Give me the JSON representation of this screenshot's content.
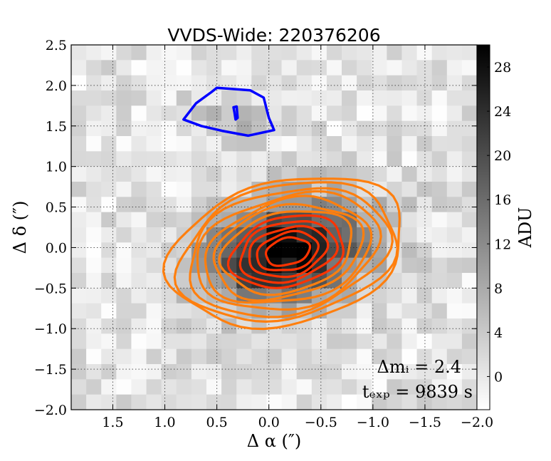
{
  "chart_data": {
    "type": "heatmap",
    "title": "VVDS-Wide: 220376206",
    "xlabel": "Δ α  (″)",
    "ylabel": "Δ δ  (″)",
    "xlim": [
      1.9,
      -2.0
    ],
    "ylim": [
      -2.0,
      2.5
    ],
    "xticks": [
      1.5,
      1.0,
      0.5,
      0.0,
      -0.5,
      -1.0,
      -1.5,
      -2.0
    ],
    "xtick_labels": [
      "1.5",
      "1.0",
      "0.5",
      "0.0",
      "−0.5",
      "−1.0",
      "−1.5",
      "−2.0"
    ],
    "yticks": [
      2.5,
      2.0,
      1.5,
      1.0,
      0.5,
      0.0,
      -0.5,
      -1.0,
      -1.5,
      -2.0
    ],
    "ytick_labels": [
      "2.5",
      "2.0",
      "1.5",
      "1.0",
      "0.5",
      "0.0",
      "−0.5",
      "−1.0",
      "−1.5",
      "−2.0"
    ],
    "grid": true,
    "colorbar": {
      "label": "ADU",
      "range": [
        -3,
        30
      ],
      "ticks": [
        0,
        4,
        8,
        12,
        16,
        20,
        24,
        28
      ],
      "colormap": "gray_r"
    },
    "annotations": {
      "delta_mag": "Δmᵢ = 2.4",
      "t_exp": "tₑₓₚ = 9839 s"
    },
    "main_source": {
      "center": [
        -0.18,
        -0.05
      ],
      "sigma_major": 0.55,
      "sigma_minor": 0.4,
      "angle_deg": -25,
      "peak_adu": 30,
      "contour_color": "#ff7f0e",
      "contour_inner_color": "#ff3300",
      "contour_levels": 12
    },
    "companion": {
      "center": [
        0.32,
        1.6
      ],
      "contour_color": "#0000ff",
      "outer_contour": [
        [
          0.5,
          1.97
        ],
        [
          0.18,
          1.94
        ],
        [
          0.05,
          1.85
        ],
        [
          0.0,
          1.6
        ],
        [
          -0.05,
          1.45
        ],
        [
          0.2,
          1.38
        ],
        [
          0.45,
          1.44
        ],
        [
          0.65,
          1.5
        ],
        [
          0.82,
          1.58
        ],
        [
          0.7,
          1.78
        ],
        [
          0.55,
          1.92
        ]
      ],
      "inner_contour": [
        [
          0.34,
          1.73
        ],
        [
          0.31,
          1.74
        ],
        [
          0.3,
          1.6
        ],
        [
          0.32,
          1.58
        ],
        [
          0.33,
          1.66
        ]
      ]
    }
  },
  "colors": {
    "orange": "#ff7f0e",
    "red_orange": "#ff3300",
    "blue": "#0000ff"
  }
}
